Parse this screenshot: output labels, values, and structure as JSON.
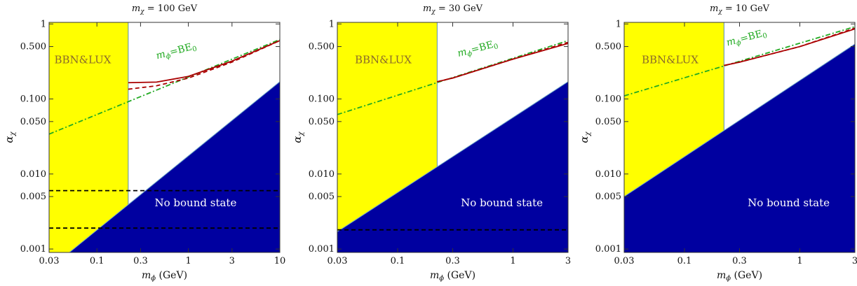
{
  "chart_data": [
    {
      "type": "area",
      "title_var": "m",
      "title_sub": "χ",
      "title_value": " = 100 GeV",
      "xlabel_var": "m",
      "xlabel_sub": "ϕ",
      "xlabel_unit": "(GeV)",
      "ylabel_var": "α",
      "ylabel_sub": "χ",
      "x_scale": "log",
      "y_scale": "log",
      "xlim": [
        0.03,
        10
      ],
      "ylim": [
        0.0009,
        1.05
      ],
      "x_ticks": [
        {
          "v": 0.03,
          "label": "0.03"
        },
        {
          "v": 0.1,
          "label": "0.1"
        },
        {
          "v": 0.3,
          "label": "0.3"
        },
        {
          "v": 1,
          "label": "1"
        },
        {
          "v": 3,
          "label": "3"
        },
        {
          "v": 10,
          "label": "10"
        }
      ],
      "y_ticks": [
        {
          "v": 0.001,
          "label": "0.001"
        },
        {
          "v": 0.005,
          "label": "0.005"
        },
        {
          "v": 0.01,
          "label": "0.010"
        },
        {
          "v": 0.05,
          "label": "0.050"
        },
        {
          "v": 0.1,
          "label": "0.100"
        },
        {
          "v": 0.5,
          "label": "0.500"
        },
        {
          "v": 1,
          "label": "1"
        }
      ],
      "excluded_region": {
        "label": "BBN&LUX",
        "x_max": 0.22,
        "color": "#ffff00",
        "label_at": [
          0.07,
          0.3
        ]
      },
      "no_bound_region": {
        "label": "No bound state",
        "x": [
          0.05,
          10
        ],
        "y": [
          0.0009,
          0.17
        ],
        "color": "#0000a0",
        "label_at": [
          1.2,
          0.0037
        ]
      },
      "bound_energy_line": {
        "label_var": "m",
        "label_sub": "ϕ",
        "label_rest": "=BE",
        "label_sub2": "0",
        "color": "#22aa22",
        "label_at": [
          0.75,
          0.4
        ],
        "x": [
          0.03,
          10
        ],
        "y": [
          0.034,
          0.62
        ]
      },
      "solid_curve": {
        "color": "#aa0000",
        "x": [
          0.22,
          0.45,
          1.0,
          3.0,
          10.0
        ],
        "y": [
          0.165,
          0.168,
          0.2,
          0.32,
          0.6
        ]
      },
      "dashed_curve": {
        "color": "#aa0000",
        "x": [
          0.22,
          0.45,
          1.0,
          3.0,
          10.0
        ],
        "y": [
          0.135,
          0.15,
          0.19,
          0.31,
          0.6
        ]
      },
      "black_dashed_lines": [
        0.006,
        0.0019
      ]
    },
    {
      "type": "area",
      "title_var": "m",
      "title_sub": "χ",
      "title_value": " = 30 GeV",
      "xlabel_var": "m",
      "xlabel_sub": "ϕ",
      "xlabel_unit": "(GeV)",
      "ylabel_var": "α",
      "ylabel_sub": "χ",
      "x_scale": "log",
      "y_scale": "log",
      "xlim": [
        0.03,
        3
      ],
      "ylim": [
        0.0009,
        1.05
      ],
      "x_ticks": [
        {
          "v": 0.03,
          "label": "0.03"
        },
        {
          "v": 0.1,
          "label": "0.1"
        },
        {
          "v": 0.3,
          "label": "0.3"
        },
        {
          "v": 1,
          "label": "1"
        },
        {
          "v": 3,
          "label": "3"
        }
      ],
      "y_ticks": [
        {
          "v": 0.001,
          "label": "0.001"
        },
        {
          "v": 0.005,
          "label": "0.005"
        },
        {
          "v": 0.01,
          "label": "0.010"
        },
        {
          "v": 0.05,
          "label": "0.050"
        },
        {
          "v": 0.1,
          "label": "0.100"
        },
        {
          "v": 0.5,
          "label": "0.500"
        },
        {
          "v": 1,
          "label": "1"
        }
      ],
      "excluded_region": {
        "label": "BBN&LUX",
        "x_max": 0.22,
        "color": "#ffff00",
        "label_at": [
          0.075,
          0.3
        ]
      },
      "no_bound_region": {
        "label": "No bound state",
        "x": [
          0.03,
          3
        ],
        "y": [
          0.0017,
          0.17
        ],
        "color": "#0000a0",
        "label_at": [
          0.8,
          0.0037
        ]
      },
      "bound_energy_line": {
        "label_var": "m",
        "label_sub": "ϕ",
        "label_rest": "=BE",
        "label_sub2": "0",
        "color": "#22aa22",
        "label_at": [
          0.5,
          0.43
        ],
        "x": [
          0.03,
          3
        ],
        "y": [
          0.062,
          0.6
        ]
      },
      "solid_curve": {
        "color": "#aa0000",
        "x": [
          0.22,
          0.3,
          1.0,
          3.0
        ],
        "y": [
          0.17,
          0.19,
          0.34,
          0.55
        ]
      },
      "dashed_curve": {
        "color": "#aa0000",
        "x": [
          0.22,
          0.3,
          1.0,
          3.0
        ],
        "y": [
          0.17,
          0.19,
          0.34,
          0.57
        ]
      },
      "black_dashed_lines": [
        0.0018
      ]
    },
    {
      "type": "area",
      "title_var": "m",
      "title_sub": "χ",
      "title_value": " = 10 GeV",
      "xlabel_var": "m",
      "xlabel_sub": "ϕ",
      "xlabel_unit": "(GeV)",
      "ylabel_var": "α",
      "ylabel_sub": "χ",
      "x_scale": "log",
      "y_scale": "log",
      "xlim": [
        0.03,
        3
      ],
      "ylim": [
        0.0009,
        1.05
      ],
      "x_ticks": [
        {
          "v": 0.03,
          "label": "0.03"
        },
        {
          "v": 0.1,
          "label": "0.1"
        },
        {
          "v": 0.3,
          "label": "0.3"
        },
        {
          "v": 1,
          "label": "1"
        },
        {
          "v": 3,
          "label": "3"
        }
      ],
      "y_ticks": [
        {
          "v": 0.001,
          "label": "0.001"
        },
        {
          "v": 0.005,
          "label": "0.005"
        },
        {
          "v": 0.01,
          "label": "0.010"
        },
        {
          "v": 0.05,
          "label": "0.050"
        },
        {
          "v": 0.1,
          "label": "0.100"
        },
        {
          "v": 0.5,
          "label": "0.500"
        },
        {
          "v": 1,
          "label": "1"
        }
      ],
      "excluded_region": {
        "label": "BBN&LUX",
        "x_max": 0.22,
        "color": "#ffff00",
        "label_at": [
          0.075,
          0.3
        ]
      },
      "no_bound_region": {
        "label": "No bound state",
        "x": [
          0.03,
          3
        ],
        "y": [
          0.005,
          0.54
        ],
        "color": "#0000a0",
        "label_at": [
          0.8,
          0.0037
        ]
      },
      "bound_energy_line": {
        "label_var": "m",
        "label_sub": "ϕ",
        "label_rest": "=BE",
        "label_sub2": "0",
        "color": "#22aa22",
        "label_at": [
          0.35,
          0.6
        ],
        "x": [
          0.03,
          3
        ],
        "y": [
          0.11,
          0.92
        ]
      },
      "solid_curve": {
        "color": "#aa0000",
        "x": [
          0.22,
          0.3,
          1.0,
          3.0
        ],
        "y": [
          0.28,
          0.31,
          0.5,
          0.86
        ]
      },
      "dashed_curve": {
        "color": "#aa0000",
        "x": [
          0.22,
          0.3,
          1.0,
          3.0
        ],
        "y": [
          0.28,
          0.31,
          0.5,
          0.88
        ]
      },
      "black_dashed_lines": []
    }
  ]
}
